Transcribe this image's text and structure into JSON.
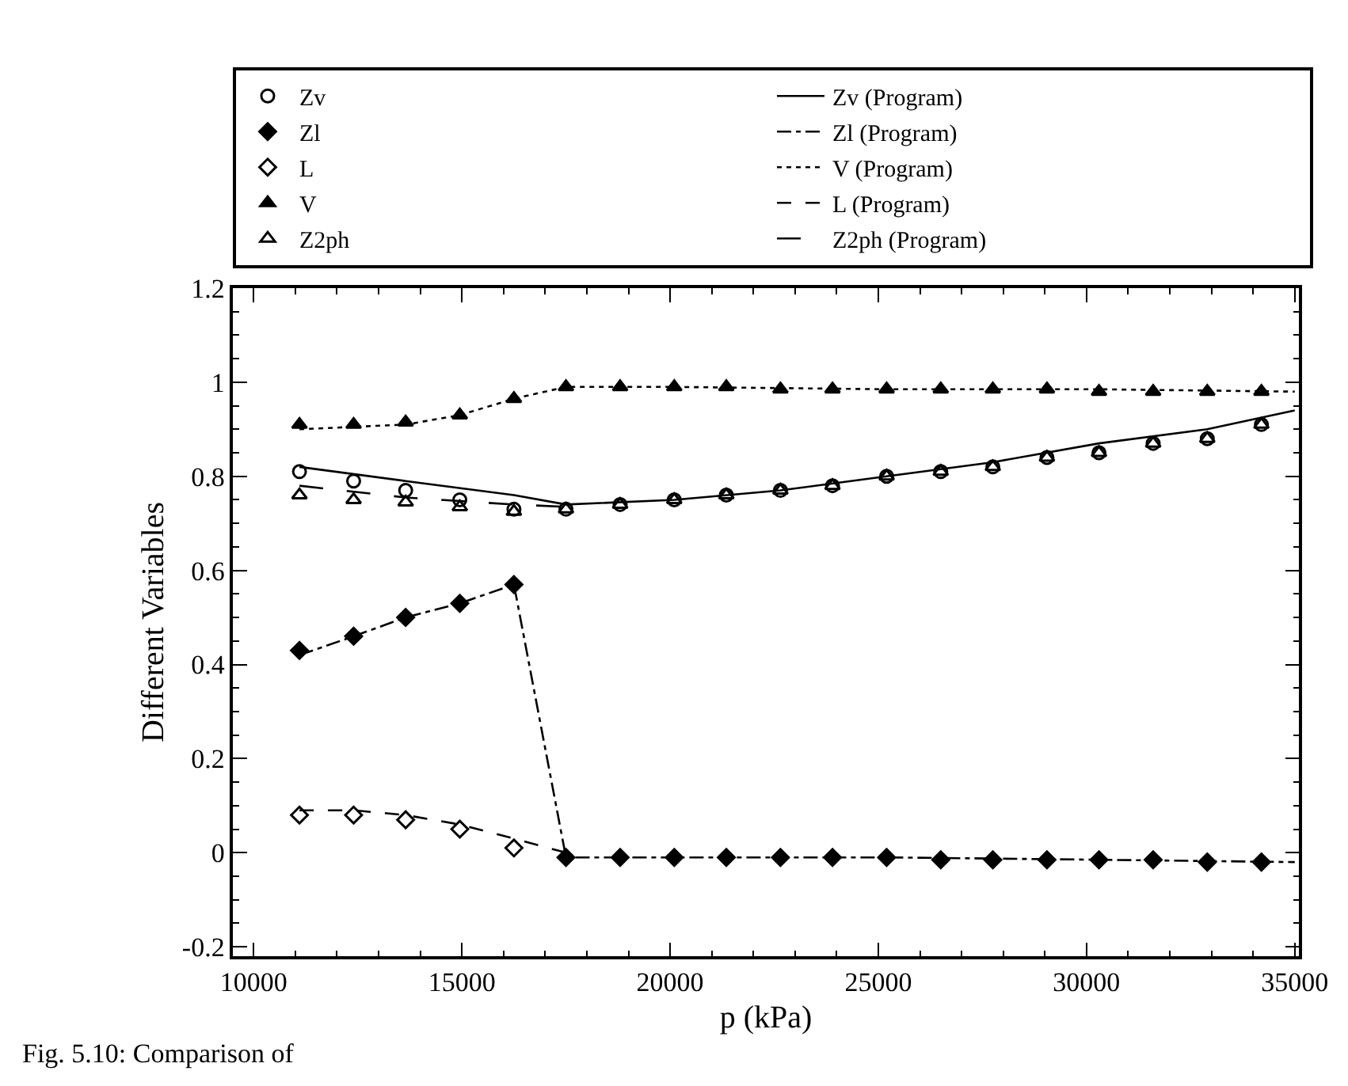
{
  "chart_data": {
    "type": "scatter",
    "xlabel": "p (kPa)",
    "ylabel": "Different Variables",
    "annotations": [
      "Fig. 5.10: Comparison of"
    ],
    "xlim": [
      9500,
      35100
    ],
    "xticks": [
      10000,
      15000,
      20000,
      25000,
      30000,
      35000
    ],
    "ylim": [
      -0.22,
      1.2
    ],
    "yticks": [
      -0.2,
      0,
      0.2,
      0.4,
      0.6,
      0.8,
      1,
      1.2
    ],
    "grid": false,
    "legend": "top",
    "series": [
      {
        "name": "Zv",
        "type": "scatter",
        "marker": "circle-open",
        "color": "#000000",
        "x": [
          11100,
          12400,
          13650,
          14950,
          16250,
          17500,
          18800,
          20100,
          21350,
          22650,
          23900,
          25200,
          26500,
          27750,
          29050,
          30300,
          31600,
          32900,
          34200
        ],
        "values": [
          0.81,
          0.79,
          0.77,
          0.75,
          0.73,
          0.73,
          0.74,
          0.75,
          0.76,
          0.77,
          0.78,
          0.8,
          0.81,
          0.82,
          0.84,
          0.85,
          0.87,
          0.88,
          0.91
        ]
      },
      {
        "name": "Zl",
        "type": "scatter",
        "marker": "diamond",
        "color": "#000000",
        "x": [
          11100,
          12400,
          13650,
          14950,
          16250,
          17500,
          18800,
          20100,
          21350,
          22650,
          23900,
          25200,
          26500,
          27750,
          29050,
          30300,
          31600,
          32900,
          34200
        ],
        "values": [
          0.43,
          0.46,
          0.5,
          0.53,
          0.57,
          -0.01,
          -0.01,
          -0.01,
          -0.01,
          -0.01,
          -0.01,
          -0.01,
          -0.015,
          -0.015,
          -0.015,
          -0.015,
          -0.015,
          -0.02,
          -0.02
        ]
      },
      {
        "name": "L",
        "type": "scatter",
        "marker": "diamond-open",
        "color": "#000000",
        "x": [
          11100,
          12400,
          13650,
          14950,
          16250
        ],
        "values": [
          0.08,
          0.08,
          0.07,
          0.05,
          0.01
        ]
      },
      {
        "name": "V",
        "type": "scatter",
        "marker": "triangle",
        "color": "#000000",
        "x": [
          11100,
          12400,
          13650,
          14950,
          16250,
          17500,
          18800,
          20100,
          21350,
          22650,
          23900,
          25200,
          26500,
          27750,
          29050,
          30300,
          31600,
          32900,
          34200
        ],
        "values": [
          0.91,
          0.91,
          0.915,
          0.93,
          0.965,
          0.99,
          0.99,
          0.99,
          0.99,
          0.985,
          0.985,
          0.985,
          0.985,
          0.985,
          0.985,
          0.98,
          0.98,
          0.98,
          0.98
        ]
      },
      {
        "name": "Z2ph",
        "type": "scatter",
        "marker": "triangle-open",
        "color": "#000000",
        "x": [
          11100,
          12400,
          13650,
          14950,
          16250,
          17500,
          18800,
          20100,
          21350,
          22650,
          23900,
          25200,
          26500,
          27750,
          29050,
          30300,
          31600,
          32900,
          34200
        ],
        "values": [
          0.76,
          0.75,
          0.745,
          0.735,
          0.725,
          0.73,
          0.74,
          0.75,
          0.76,
          0.77,
          0.78,
          0.8,
          0.81,
          0.82,
          0.84,
          0.85,
          0.87,
          0.88,
          0.91
        ]
      },
      {
        "name": "Zv (Program)",
        "type": "line",
        "line_style": "solid",
        "color": "#000000",
        "x": [
          11100,
          13650,
          16250,
          17500,
          20100,
          22650,
          25200,
          27750,
          30300,
          32900,
          35000
        ],
        "values": [
          0.82,
          0.79,
          0.76,
          0.74,
          0.75,
          0.77,
          0.8,
          0.83,
          0.87,
          0.9,
          0.94
        ]
      },
      {
        "name": "Zl (Program)",
        "type": "line",
        "line_style": "dashdot",
        "color": "#000000",
        "x": [
          11100,
          12400,
          13650,
          14950,
          16250,
          17500,
          20100,
          25200,
          30300,
          35000
        ],
        "values": [
          0.42,
          0.46,
          0.5,
          0.53,
          0.57,
          -0.01,
          -0.01,
          -0.01,
          -0.015,
          -0.02
        ]
      },
      {
        "name": "V (Program)",
        "type": "line",
        "line_style": "dotted",
        "color": "#000000",
        "x": [
          11100,
          13650,
          14950,
          16250,
          17500,
          20100,
          25200,
          30300,
          35000
        ],
        "values": [
          0.9,
          0.91,
          0.93,
          0.965,
          0.99,
          0.99,
          0.985,
          0.985,
          0.98
        ]
      },
      {
        "name": "L (Program)",
        "type": "line",
        "line_style": "dashed",
        "color": "#000000",
        "x": [
          11100,
          12400,
          13650,
          14950,
          16250,
          17500
        ],
        "values": [
          0.09,
          0.09,
          0.08,
          0.06,
          0.03,
          0
        ]
      },
      {
        "name": "Z2ph (Program)",
        "type": "line",
        "line_style": "longdash",
        "color": "#000000",
        "x": [
          11100,
          13650,
          16250,
          17500
        ],
        "values": [
          0.78,
          0.755,
          0.74,
          0.735
        ]
      }
    ]
  }
}
